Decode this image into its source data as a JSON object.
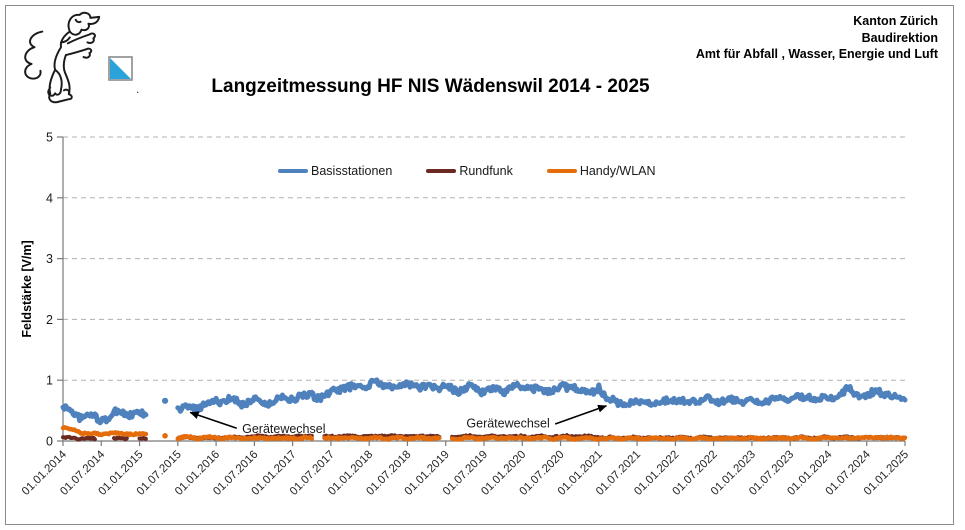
{
  "page": {
    "background": "#ffffff",
    "border_color": "#8a8a8a"
  },
  "header": {
    "org_lines": [
      "Kanton Zürich",
      "Baudirektion",
      "Amt für Abfall , Wasser, Energie und Luft"
    ],
    "logo": {
      "shield_blue": "#2AA3DB",
      "dot": "."
    }
  },
  "chart_data": {
    "type": "line",
    "title": "Langzeitmessung HF NIS Wädenswil 2014 - 2025",
    "ylabel": "Feldstärke [V/m]",
    "ylim": [
      0,
      5
    ],
    "yticks": [
      0,
      1,
      2,
      3,
      4,
      5
    ],
    "grid": "horizontal-dashed",
    "legend_position": "top-inside",
    "x_range_years": [
      2014.0,
      2025.0
    ],
    "x_tick_labels": [
      "01.01.2014",
      "01.07.2014",
      "01.01.2015",
      "01.07.2015",
      "01.01.2016",
      "01.07.2016",
      "01.01.2017",
      "01.07.2017",
      "01.01.2018",
      "01.07.2018",
      "01.01.2019",
      "01.07.2019",
      "01.01.2020",
      "01.07.2020",
      "01.01.2021",
      "01.07.2021",
      "01.01.2022",
      "01.07.2022",
      "01.01.2023",
      "01.07.2023",
      "01.01.2024",
      "01.07.2024",
      "01.01.2025"
    ],
    "sampling": {
      "start_year": 2014.0,
      "step_months": 1,
      "unit": "V/m"
    },
    "series": [
      {
        "name": "Basisstationen",
        "color": "#4F81BD",
        "values": [
          0.55,
          0.5,
          0.43,
          0.4,
          0.42,
          0.38,
          0.35,
          0.38,
          0.45,
          0.48,
          0.46,
          0.43,
          0.44,
          0.42,
          null,
          null,
          0.65,
          null,
          0.52,
          0.55,
          0.52,
          0.56,
          0.6,
          0.63,
          0.66,
          0.64,
          0.68,
          0.65,
          0.62,
          0.66,
          0.69,
          0.64,
          0.61,
          0.66,
          0.7,
          0.72,
          0.7,
          0.73,
          0.71,
          0.76,
          0.73,
          0.71,
          0.79,
          0.86,
          0.89,
          0.86,
          0.91,
          0.89,
          0.93,
          0.96,
          0.91,
          0.93,
          0.89,
          0.91,
          0.96,
          0.93,
          0.86,
          0.89,
          0.91,
          0.86,
          0.89,
          0.86,
          0.83,
          0.86,
          0.89,
          0.86,
          0.81,
          0.83,
          0.86,
          0.83,
          0.86,
          0.89,
          0.86,
          0.89,
          0.86,
          0.81,
          0.83,
          0.86,
          0.89,
          0.86,
          0.91,
          0.86,
          0.81,
          0.79,
          0.9,
          0.72,
          0.66,
          0.63,
          0.66,
          0.61,
          0.63,
          0.66,
          0.64,
          0.61,
          0.66,
          0.69,
          0.66,
          0.63,
          0.66,
          0.69,
          0.66,
          0.71,
          0.69,
          0.66,
          0.63,
          0.66,
          0.69,
          0.66,
          0.63,
          0.61,
          0.66,
          0.69,
          0.71,
          0.69,
          0.73,
          0.71,
          0.69,
          0.73,
          0.71,
          0.69,
          0.73,
          0.71,
          0.76,
          0.86,
          0.79,
          0.73,
          0.71,
          0.79,
          0.83,
          0.76,
          0.73,
          0.71,
          0.7
        ]
      },
      {
        "name": "Rundfunk",
        "color": "#6A2A22",
        "values": [
          0.05,
          0.05,
          0.04,
          0.04,
          0.05,
          0.03,
          null,
          null,
          0.04,
          0.05,
          0.04,
          null,
          0.03,
          0.04,
          null,
          null,
          null,
          null,
          0.05,
          0.06,
          0.05,
          0.05,
          0.06,
          0.05,
          0.05,
          0.06,
          0.05,
          0.06,
          0.06,
          0.07,
          0.07,
          0.08,
          0.07,
          0.07,
          0.08,
          0.07,
          0.07,
          0.08,
          0.07,
          0.08,
          null,
          0.08,
          0.07,
          0.08,
          0.09,
          0.08,
          0.07,
          0.08,
          0.08,
          0.07,
          0.08,
          0.09,
          0.08,
          0.07,
          0.08,
          0.08,
          0.07,
          0.08,
          0.09,
          0.08,
          null,
          0.08,
          0.07,
          0.08,
          0.08,
          0.07,
          0.08,
          0.08,
          0.07,
          0.08,
          0.08,
          0.07,
          0.08,
          0.07,
          0.08,
          0.08,
          0.07,
          0.08,
          0.07,
          0.08,
          0.08,
          0.07,
          0.08,
          0.07,
          0.06,
          0.05,
          0.06,
          0.05,
          0.05,
          0.06,
          0.05,
          0.05,
          0.06,
          0.05,
          0.05,
          0.06,
          0.05,
          0.06,
          0.05,
          0.05,
          0.06,
          0.05,
          0.05,
          0.06,
          0.05,
          0.05,
          0.06,
          0.05,
          0.05,
          0.05,
          0.06,
          0.05,
          0.05,
          0.06,
          0.05,
          0.05,
          0.06,
          0.05,
          0.05,
          0.06,
          0.06,
          0.05,
          0.06,
          0.06,
          0.05,
          0.06,
          0.06,
          0.05,
          0.06,
          0.06,
          0.05,
          0.06,
          0.05
        ]
      },
      {
        "name": "Handy/WLAN",
        "color": "#E46C0A",
        "values": [
          0.22,
          0.2,
          0.17,
          0.13,
          0.12,
          0.12,
          0.11,
          0.12,
          0.13,
          0.12,
          0.12,
          0.11,
          0.12,
          0.11,
          null,
          null,
          0.08,
          null,
          0.05,
          0.06,
          0.06,
          0.05,
          0.06,
          0.06,
          0.05,
          0.05,
          0.06,
          0.05,
          0.04,
          0.05,
          0.05,
          0.04,
          0.05,
          0.05,
          0.04,
          0.05,
          0.05,
          0.04,
          0.05,
          0.05,
          null,
          0.05,
          0.04,
          0.05,
          0.05,
          0.04,
          0.05,
          0.05,
          0.04,
          0.05,
          0.05,
          0.04,
          0.05,
          0.05,
          0.04,
          0.05,
          0.05,
          0.04,
          0.05,
          0.05,
          null,
          0.05,
          0.04,
          0.05,
          0.05,
          0.04,
          0.05,
          0.05,
          0.04,
          0.05,
          0.05,
          0.04,
          0.05,
          0.05,
          0.04,
          0.05,
          0.05,
          0.04,
          0.05,
          0.05,
          0.04,
          0.05,
          0.05,
          0.04,
          0.04,
          0.04,
          0.05,
          0.04,
          0.04,
          0.05,
          0.04,
          0.04,
          0.05,
          0.04,
          0.04,
          0.05,
          0.04,
          0.05,
          0.04,
          0.04,
          0.05,
          0.04,
          0.04,
          0.05,
          0.04,
          0.04,
          0.05,
          0.04,
          0.05,
          0.04,
          0.05,
          0.05,
          0.04,
          0.05,
          0.05,
          0.04,
          0.05,
          0.05,
          0.04,
          0.05,
          0.05,
          0.05,
          0.06,
          0.05,
          0.05,
          0.06,
          0.05,
          0.05,
          0.06,
          0.06,
          0.05,
          0.05,
          0.05
        ]
      }
    ],
    "annotations": [
      {
        "text": "Gerätewechsel",
        "text_year": 2016.34,
        "text_value": 0.13,
        "arrow": {
          "x1": 2016.27,
          "y1": 0.21,
          "x2": 2015.66,
          "y2": 0.47
        }
      },
      {
        "text": "Gerätewechsel",
        "text_year": 2019.27,
        "text_value": 0.22,
        "arrow": {
          "x1": 2020.43,
          "y1": 0.28,
          "x2": 2021.1,
          "y2": 0.58
        }
      }
    ]
  }
}
